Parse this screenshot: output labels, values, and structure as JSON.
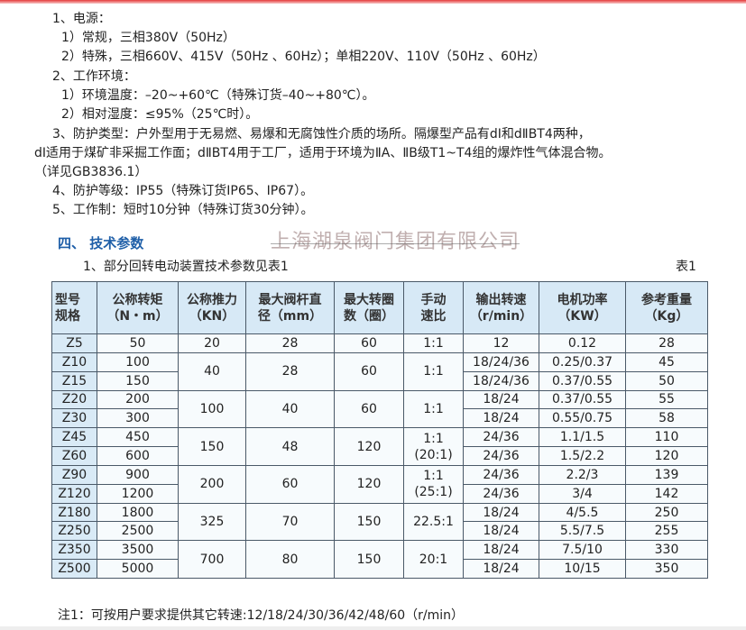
{
  "lines": [
    "1、电源：",
    "1）常规，三相380V（50Hz）",
    "2）特殊，三相660V、415V（50Hz 、60Hz）；单相220V、110V（50Hz 、60Hz）",
    "2、工作环境：",
    "1）环境温度：–20~+60℃（特殊订货–40~+80℃）。",
    "2）相对湿度：≤95%（25℃时）。",
    "3、防护类型：户外型用于无易燃、易爆和无腐蚀性介质的场所。隔爆型产品有dⅠ和dⅡBT4两种，",
    "dⅠ适用于煤矿非采掘工作面；dⅡBT4用于工厂，适用于环境为ⅡA、ⅡB级T1~T4组的爆炸性气体混合物。",
    "（详见GB3836.1）",
    "4、防护等级：IP55（特殊订货IP65、IP67）。",
    "5、工作制：短时10分钟（特殊订货30分钟）。"
  ],
  "section_heading": "四、 技术参数",
  "table_intro": "1、部分回转电动装置技术参数见表1",
  "table_label": "表1",
  "table": {
    "headers": [
      [
        "型号",
        "规格"
      ],
      [
        "公称转矩",
        "（N・m）"
      ],
      [
        "公称推力",
        "（KN）"
      ],
      [
        "最大阀杆直",
        "径（mm）"
      ],
      [
        "最大转圈",
        "数（圈）"
      ],
      [
        "手动",
        "速比"
      ],
      [
        "输出转速",
        "（r/min）"
      ],
      [
        "电机功率",
        "（KW）"
      ],
      [
        "参考重量",
        "（Kg）"
      ]
    ],
    "groups": [
      {
        "thrust": "20",
        "stem": "28",
        "turns": "60",
        "ratio": "1:1",
        "rows": [
          {
            "model": "Z5",
            "torque": "50",
            "speed": "12",
            "power": "0.12",
            "weight": "28"
          }
        ]
      },
      {
        "thrust": "40",
        "stem": "28",
        "turns": "60",
        "ratio": "1:1",
        "rows": [
          {
            "model": "Z10",
            "torque": "100",
            "speed": "18/24/36",
            "power": "0.25/0.37",
            "weight": "45"
          },
          {
            "model": "Z15",
            "torque": "150",
            "speed": "18/24/36",
            "power": "0.37/0.55",
            "weight": "50"
          }
        ]
      },
      {
        "thrust": "100",
        "stem": "40",
        "turns": "60",
        "ratio": "1:1",
        "rows": [
          {
            "model": "Z20",
            "torque": "200",
            "speed": "18/24",
            "power": "0.37/0.55",
            "weight": "55"
          },
          {
            "model": "Z30",
            "torque": "300",
            "speed": "18/24",
            "power": "0.55/0.75",
            "weight": "58"
          }
        ]
      },
      {
        "thrust": "150",
        "stem": "48",
        "turns": "120",
        "ratio": "1:1",
        "ratio2": "(20:1)",
        "rows": [
          {
            "model": "Z45",
            "torque": "450",
            "speed": "24/36",
            "power": "1.1/1.5",
            "weight": "110"
          },
          {
            "model": "Z60",
            "torque": "600",
            "speed": "24/36",
            "power": "1.5/2.2",
            "weight": "120"
          }
        ]
      },
      {
        "thrust": "200",
        "stem": "60",
        "turns": "120",
        "ratio": "1:1",
        "ratio2": "(25:1)",
        "rows": [
          {
            "model": "Z90",
            "torque": "900",
            "speed": "24/36",
            "power": "2.2/3",
            "weight": "139"
          },
          {
            "model": "Z120",
            "torque": "1200",
            "speed": "24/36",
            "power": "3/4",
            "weight": "142"
          }
        ]
      },
      {
        "thrust": "325",
        "stem": "70",
        "turns": "150",
        "ratio": "22.5:1",
        "rows": [
          {
            "model": "Z180",
            "torque": "1800",
            "speed": "18/24",
            "power": "4/5.5",
            "weight": "250"
          },
          {
            "model": "Z250",
            "torque": "2500",
            "speed": "18/24",
            "power": "5.5/7.5",
            "weight": "255"
          }
        ]
      },
      {
        "thrust": "700",
        "stem": "80",
        "turns": "150",
        "ratio": "20:1",
        "rows": [
          {
            "model": "Z350",
            "torque": "3500",
            "speed": "18/24",
            "power": "7.5/10",
            "weight": "330"
          },
          {
            "model": "Z500",
            "torque": "5000",
            "speed": "18/24",
            "power": "10/15",
            "weight": "350"
          }
        ]
      }
    ]
  },
  "watermark": "上海湖泉阀门集团有限公司",
  "note": "注1：可按用户要求提供其它转速:12/18/24/30/36/42/48/60（r/min）",
  "colors": {
    "heading": "#1f5fa8",
    "header_bg": "#d7e9f6",
    "border": "#4a5968",
    "top_rule": "#e53a3a"
  }
}
